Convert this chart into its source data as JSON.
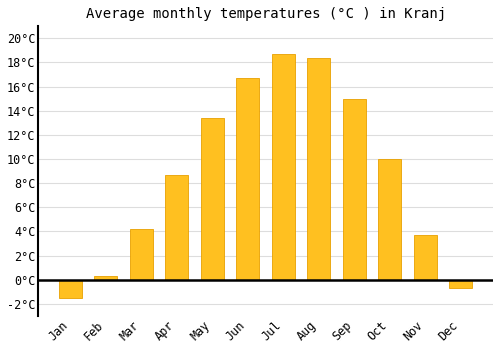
{
  "title": "Average monthly temperatures (°C ) in Kranj",
  "months": [
    "Jan",
    "Feb",
    "Mar",
    "Apr",
    "May",
    "Jun",
    "Jul",
    "Aug",
    "Sep",
    "Oct",
    "Nov",
    "Dec"
  ],
  "values": [
    -1.5,
    0.3,
    4.2,
    8.7,
    13.4,
    16.7,
    18.7,
    18.4,
    15.0,
    10.0,
    3.7,
    -0.7
  ],
  "bar_color": "#FFC020",
  "bar_edge_color": "#E8A000",
  "background_color": "#FFFFFF",
  "grid_color": "#DDDDDD",
  "ylim": [
    -3,
    21
  ],
  "yticks": [
    -2,
    0,
    2,
    4,
    6,
    8,
    10,
    12,
    14,
    16,
    18,
    20
  ],
  "ytick_labels": [
    "-2°C",
    "0°C",
    "2°C",
    "4°C",
    "6°C",
    "8°C",
    "10°C",
    "12°C",
    "14°C",
    "16°C",
    "18°C",
    "20°C"
  ],
  "title_fontsize": 10,
  "tick_fontsize": 8.5,
  "font_family": "monospace"
}
